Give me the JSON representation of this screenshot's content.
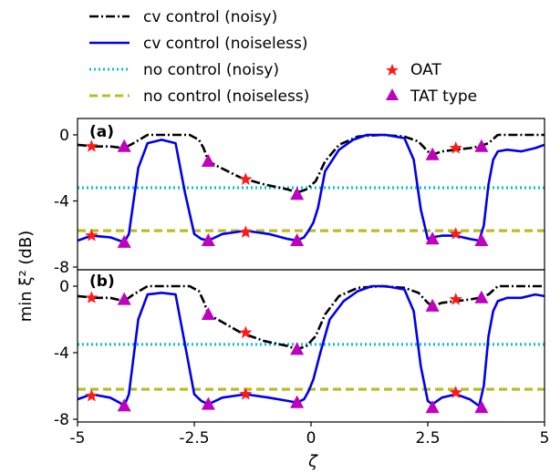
{
  "legend": {
    "cv_noisy": "cv control (noisy)",
    "cv_noiseless": "cv control (noiseless)",
    "nc_noisy": "no control (noisy)",
    "nc_noiseless": "no control (noiseless)",
    "oat": "OAT",
    "tat": "TAT type"
  },
  "colors": {
    "cv_noisy": "#000000",
    "cv_noiseless": "#0000ee",
    "nc_noisy": "#17becf",
    "nc_noiseless": "#bcbd22",
    "oat": "#ff1a1a",
    "tat": "#bf00bf"
  },
  "chart_data": [
    {
      "type": "line",
      "panel_label": "(a)",
      "xlim": [
        -5,
        5
      ],
      "ylim": [
        -8,
        1
      ],
      "yticks": [
        0,
        -4,
        -8
      ],
      "ytick_labels": [
        "0",
        "-4",
        "-8"
      ],
      "ylabel": "min ξ² (dB)",
      "series": [
        {
          "key": "cv_noisy",
          "x": [
            -5,
            -4.6,
            -4.3,
            -4.0,
            -3.8,
            -3.5,
            -3.2,
            -2.8,
            -2.6,
            -2.4,
            -2.3,
            -2.2,
            -2.0,
            -1.5,
            -1.0,
            -0.5,
            -0.3,
            -0.1,
            0.1,
            0.3,
            0.6,
            1.0,
            1.5,
            2.0,
            2.3,
            2.5,
            2.6,
            2.8,
            3.1,
            3.4,
            3.6,
            3.8,
            4.0,
            4.3,
            4.6,
            5.0
          ],
          "y": [
            -0.6,
            -0.7,
            -0.7,
            -0.8,
            -0.5,
            0,
            0,
            0,
            0,
            -0.3,
            -0.8,
            -1.6,
            -1.9,
            -2.6,
            -3.0,
            -3.3,
            -3.5,
            -3.3,
            -2.8,
            -1.6,
            -0.6,
            -0.1,
            0,
            -0.1,
            -0.4,
            -1.0,
            -1.2,
            -1.0,
            -0.9,
            -0.8,
            -0.7,
            -0.5,
            0,
            0,
            0,
            0
          ]
        },
        {
          "key": "cv_noiseless",
          "x": [
            -5,
            -4.7,
            -4.3,
            -4.1,
            -4.0,
            -3.9,
            -3.7,
            -3.5,
            -3.2,
            -2.9,
            -2.7,
            -2.5,
            -2.35,
            -2.2,
            -1.9,
            -1.4,
            -0.9,
            -0.5,
            -0.3,
            -0.15,
            -0.05,
            0.05,
            0.15,
            0.3,
            0.6,
            0.9,
            1.2,
            1.6,
            2.0,
            2.2,
            2.35,
            2.5,
            2.6,
            2.8,
            3.1,
            3.4,
            3.6,
            3.7,
            3.8,
            3.9,
            4.0,
            4.2,
            4.5,
            4.8,
            5.0
          ],
          "y": [
            -6.4,
            -6.1,
            -6.2,
            -6.4,
            -6.5,
            -6.0,
            -2.0,
            -0.5,
            -0.3,
            -0.5,
            -3.5,
            -6.0,
            -6.3,
            -6.4,
            -6.0,
            -5.8,
            -6.0,
            -6.3,
            -6.4,
            -6.2,
            -5.8,
            -5.3,
            -4.4,
            -2.2,
            -0.9,
            -0.3,
            0,
            0,
            -0.2,
            -1.5,
            -4.5,
            -6.3,
            -6.2,
            -6.1,
            -6.1,
            -6.3,
            -6.4,
            -5.5,
            -3.0,
            -1.5,
            -1.0,
            -0.9,
            -1.0,
            -0.8,
            -0.6
          ]
        },
        {
          "key": "nc_noisy",
          "x": [
            -5,
            5
          ],
          "y": [
            -3.2,
            -3.2
          ]
        },
        {
          "key": "nc_noiseless",
          "x": [
            -5,
            5
          ],
          "y": [
            -5.8,
            -5.8
          ]
        }
      ],
      "oat_markers": {
        "x": [
          -4.7,
          -4.7,
          -1.4,
          -1.4,
          3.1,
          3.1
        ],
        "y": [
          -0.7,
          -6.1,
          -2.7,
          -5.9,
          -0.8,
          -6.0
        ]
      },
      "tat_markers": {
        "x": [
          -4.0,
          -4.0,
          -2.2,
          -2.2,
          -0.3,
          -0.3,
          2.6,
          2.6,
          3.65,
          3.65
        ],
        "y": [
          -0.7,
          -6.5,
          -1.6,
          -6.4,
          -3.6,
          -6.4,
          -1.2,
          -6.3,
          -0.7,
          -6.4
        ]
      }
    },
    {
      "type": "line",
      "panel_label": "(b)",
      "xlim": [
        -5,
        5
      ],
      "ylim": [
        -8,
        0.5
      ],
      "yticks": [
        0,
        -4,
        -8
      ],
      "ytick_labels": [
        "0",
        "-4",
        "-8"
      ],
      "xticks": [
        -5,
        -2.5,
        0,
        2.5,
        5
      ],
      "xtick_labels": [
        "-5",
        "-2.5",
        "0",
        "2.5",
        "5"
      ],
      "xlabel": "ζ",
      "series": [
        {
          "key": "cv_noisy",
          "x": [
            -5,
            -4.6,
            -4.3,
            -4.0,
            -3.8,
            -3.5,
            -3.2,
            -2.8,
            -2.6,
            -2.4,
            -2.3,
            -2.2,
            -2.0,
            -1.5,
            -1.0,
            -0.5,
            -0.3,
            -0.1,
            0.1,
            0.3,
            0.6,
            1.0,
            1.5,
            2.0,
            2.3,
            2.5,
            2.6,
            2.8,
            3.1,
            3.4,
            3.6,
            3.8,
            4.0,
            4.3,
            4.6,
            5.0
          ],
          "y": [
            -0.6,
            -0.7,
            -0.7,
            -0.9,
            -0.5,
            0,
            0,
            0,
            0,
            -0.3,
            -0.9,
            -1.7,
            -2.0,
            -2.8,
            -3.3,
            -3.6,
            -3.8,
            -3.6,
            -3.0,
            -1.7,
            -0.6,
            -0.1,
            0,
            -0.1,
            -0.4,
            -1.0,
            -1.2,
            -1.0,
            -0.9,
            -0.8,
            -0.7,
            -0.5,
            0,
            0,
            0,
            0
          ]
        },
        {
          "key": "cv_noiseless",
          "x": [
            -5,
            -4.7,
            -4.3,
            -4.1,
            -4.0,
            -3.9,
            -3.7,
            -3.5,
            -3.2,
            -2.9,
            -2.7,
            -2.5,
            -2.35,
            -2.2,
            -1.9,
            -1.4,
            -0.9,
            -0.5,
            -0.3,
            -0.15,
            -0.05,
            0.05,
            0.2,
            0.4,
            0.7,
            1.0,
            1.3,
            1.6,
            2.0,
            2.2,
            2.35,
            2.5,
            2.6,
            2.8,
            3.1,
            3.4,
            3.6,
            3.7,
            3.8,
            3.9,
            4.0,
            4.2,
            4.5,
            4.8,
            5.0
          ],
          "y": [
            -6.8,
            -6.5,
            -6.7,
            -7.0,
            -7.2,
            -6.5,
            -2.0,
            -0.5,
            -0.4,
            -0.5,
            -3.5,
            -6.5,
            -6.9,
            -7.1,
            -6.7,
            -6.5,
            -6.7,
            -6.9,
            -7.0,
            -6.8,
            -6.3,
            -5.6,
            -4.0,
            -2.0,
            -0.9,
            -0.3,
            0,
            0,
            -0.2,
            -1.5,
            -4.8,
            -6.9,
            -7.1,
            -6.7,
            -6.5,
            -6.8,
            -7.2,
            -6.0,
            -3.0,
            -1.5,
            -0.9,
            -0.7,
            -0.7,
            -0.5,
            -0.6
          ]
        },
        {
          "key": "nc_noisy",
          "x": [
            -5,
            5
          ],
          "y": [
            -3.5,
            -3.5
          ]
        },
        {
          "key": "nc_noiseless",
          "x": [
            -5,
            5
          ],
          "y": [
            -6.2,
            -6.2
          ]
        }
      ],
      "oat_markers": {
        "x": [
          -4.7,
          -4.7,
          -1.4,
          -1.4,
          3.1,
          3.1
        ],
        "y": [
          -0.7,
          -6.6,
          -2.8,
          -6.5,
          -0.8,
          -6.4
        ]
      },
      "tat_markers": {
        "x": [
          -4.0,
          -4.0,
          -2.2,
          -2.2,
          -0.3,
          -0.3,
          2.6,
          2.6,
          3.65,
          3.65
        ],
        "y": [
          -0.8,
          -7.2,
          -1.7,
          -7.1,
          -3.8,
          -7.0,
          -1.2,
          -7.3,
          -0.7,
          -7.3
        ]
      }
    }
  ]
}
